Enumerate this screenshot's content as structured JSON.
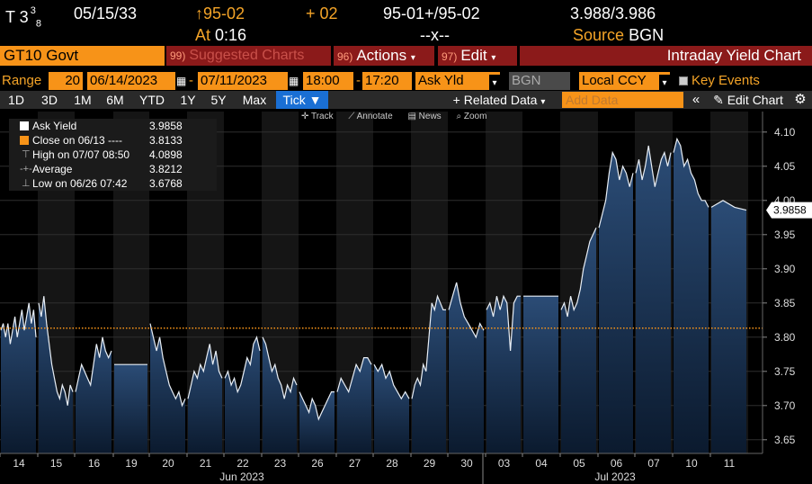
{
  "quote": {
    "ticker": "T 3",
    "coupon_num": "3",
    "coupon_den": "8",
    "maturity": "05/15/33",
    "last_arrow": "↑",
    "last_price": "95-02",
    "change": "+ 02",
    "bid_ask": "95-01+/95-02",
    "yields": "3.988/3.986",
    "time_label": "At",
    "time": "0:16",
    "size": "--x--",
    "source_label": "Source",
    "source": "BGN"
  },
  "titlebar": {
    "security": "GT10 Govt",
    "suggested_num": "99)",
    "suggested": "Suggested Charts",
    "actions_num": "96)",
    "actions": "Actions",
    "edit_num": "97)",
    "edit": "Edit",
    "chart_title": "Intraday Yield Chart"
  },
  "controls": {
    "range_label": "Range",
    "bar_size": "20",
    "start_date": "06/14/2023",
    "end_date": "07/11/2023",
    "start_time": "18:00",
    "end_time": "17:20",
    "field": "Ask Yld",
    "source": "BGN",
    "currency": "Local CCY",
    "key_events": "Key Events"
  },
  "periods": {
    "items": [
      "1D",
      "3D",
      "1M",
      "6M",
      "YTD",
      "1Y",
      "5Y",
      "Max",
      "Tick ▼"
    ],
    "active": "Tick ▼",
    "related": "+ Related Data",
    "add_data_placeholder": "Add Data",
    "edit_chart": "Edit Chart"
  },
  "tools": [
    "✛ Track",
    "⟋ Annotate",
    "▤ News",
    "⌕ Zoom"
  ],
  "legend": {
    "rows": [
      {
        "label": "Ask Yield",
        "value": "3.9858"
      },
      {
        "label": "Close on 06/13 ----",
        "value": "3.8133"
      },
      {
        "label": "High on 07/07 08:50",
        "value": "4.0898"
      },
      {
        "label": "Average",
        "value": "3.8212"
      },
      {
        "label": "Low on 06/26 07:42",
        "value": "3.6768"
      }
    ]
  },
  "colors": {
    "amber": "#f79318",
    "maroon": "#8b1a1a",
    "area_top": "#2b4c76",
    "area_bottom": "#0b1a2e",
    "close_line": "#f79318"
  },
  "chart_data": {
    "type": "area",
    "title": "Intraday Yield Chart",
    "xlabel": "",
    "ylabel": "",
    "ylim": [
      3.63,
      4.13
    ],
    "y_ticks": [
      3.65,
      3.7,
      3.75,
      3.8,
      3.85,
      3.9,
      3.95,
      4.0,
      4.05,
      4.1
    ],
    "x_ticks": [
      "14",
      "15",
      "16",
      "19",
      "20",
      "21",
      "22",
      "23",
      "26",
      "27",
      "28",
      "29",
      "30",
      "03",
      "04",
      "05",
      "06",
      "07",
      "10",
      "11"
    ],
    "month_labels": [
      "Jun 2023",
      "Jul 2023"
    ],
    "reference_line": {
      "name": "Close on 06/13",
      "value": 3.8133
    },
    "last_value": 3.9858,
    "series": [
      {
        "name": "Ask Yield",
        "values": [
          [
            "14",
            [
              3.81,
              3.82,
              3.8,
              3.82,
              3.79,
              3.81,
              3.83,
              3.8,
              3.82,
              3.84,
              3.81,
              3.83,
              3.85,
              3.82,
              3.84,
              3.8
            ]
          ],
          [
            "15",
            [
              3.85,
              3.83,
              3.86,
              3.82,
              3.79,
              3.76,
              3.74,
              3.72,
              3.71,
              3.73,
              3.72,
              3.7,
              3.73,
              3.72
            ]
          ],
          [
            "16",
            [
              3.72,
              3.74,
              3.76,
              3.75,
              3.74,
              3.73,
              3.76,
              3.79,
              3.77,
              3.8,
              3.78,
              3.77,
              3.78
            ]
          ],
          [
            "19",
            [
              3.76,
              3.76,
              3.76,
              3.76,
              3.76,
              3.76
            ]
          ],
          [
            "20",
            [
              3.82,
              3.8,
              3.78,
              3.8,
              3.77,
              3.75,
              3.73,
              3.72,
              3.71,
              3.72,
              3.7,
              3.71
            ]
          ],
          [
            "21",
            [
              3.71,
              3.73,
              3.75,
              3.74,
              3.76,
              3.75,
              3.77,
              3.79,
              3.76,
              3.78,
              3.75,
              3.74
            ]
          ],
          [
            "22",
            [
              3.74,
              3.75,
              3.73,
              3.74,
              3.72,
              3.73,
              3.75,
              3.77,
              3.76,
              3.79,
              3.8,
              3.78
            ]
          ],
          [
            "23",
            [
              3.8,
              3.79,
              3.77,
              3.75,
              3.76,
              3.74,
              3.73,
              3.71,
              3.73,
              3.72,
              3.74,
              3.73
            ]
          ],
          [
            "26",
            [
              3.72,
              3.71,
              3.7,
              3.69,
              3.71,
              3.7,
              3.68,
              3.69,
              3.7,
              3.71,
              3.72,
              3.72
            ]
          ],
          [
            "27",
            [
              3.72,
              3.74,
              3.73,
              3.72,
              3.74,
              3.76,
              3.75,
              3.77,
              3.77,
              3.76
            ]
          ],
          [
            "28",
            [
              3.76,
              3.75,
              3.76,
              3.74,
              3.75,
              3.73,
              3.72,
              3.71,
              3.72,
              3.71
            ]
          ],
          [
            "29",
            [
              3.71,
              3.73,
              3.74,
              3.73,
              3.76,
              3.75,
              3.8,
              3.85,
              3.84,
              3.86,
              3.85,
              3.84,
              3.84
            ]
          ],
          [
            "30",
            [
              3.84,
              3.86,
              3.88,
              3.85,
              3.83,
              3.82,
              3.81,
              3.8,
              3.82,
              3.81
            ]
          ],
          [
            "03",
            [
              3.84,
              3.85,
              3.83,
              3.86,
              3.84,
              3.86,
              3.85,
              3.78,
              3.85,
              3.86,
              3.86
            ]
          ],
          [
            "04",
            [
              3.86,
              3.86,
              3.86,
              3.86,
              3.86,
              3.86
            ]
          ],
          [
            "05",
            [
              3.84,
              3.85,
              3.83,
              3.86,
              3.84,
              3.85,
              3.87,
              3.9,
              3.92,
              3.94,
              3.95,
              3.96
            ]
          ],
          [
            "06",
            [
              3.96,
              3.98,
              4.0,
              4.04,
              4.07,
              4.06,
              4.03,
              4.05,
              4.04,
              4.02,
              4.04
            ]
          ],
          [
            "07",
            [
              4.04,
              4.06,
              4.03,
              4.05,
              4.08,
              4.05,
              4.02,
              4.04,
              4.06,
              4.07,
              4.05,
              4.07
            ]
          ],
          [
            "10",
            [
              4.07,
              4.09,
              4.08,
              4.05,
              4.06,
              4.04,
              4.03,
              4.01,
              4.0,
              4.0,
              3.99
            ]
          ],
          [
            "11",
            [
              3.99,
              4.0,
              3.99,
              3.9858
            ]
          ]
        ]
      }
    ]
  }
}
